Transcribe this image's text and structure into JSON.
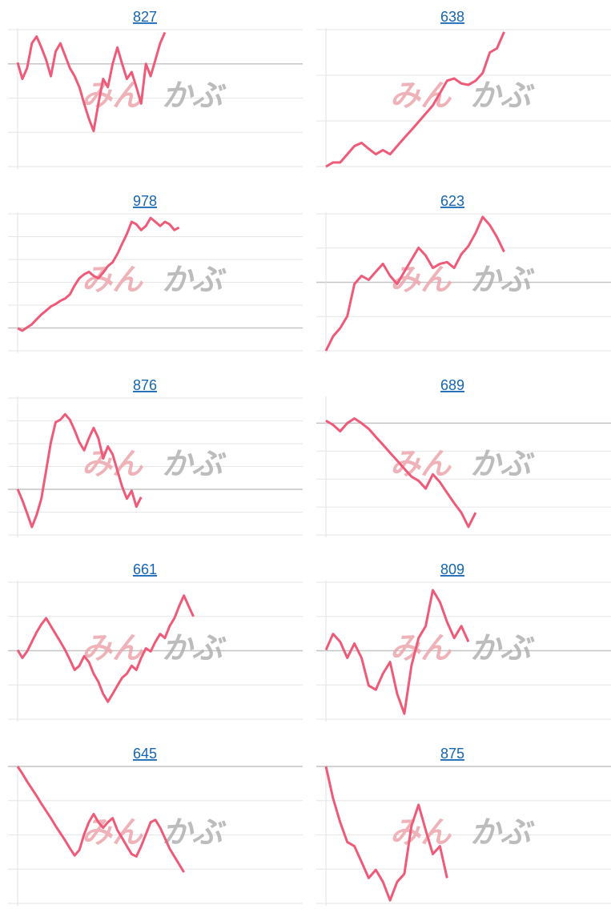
{
  "watermark": [
    "みん",
    "かぶ"
  ],
  "chart_data": [
    {
      "type": "line",
      "title": "827",
      "color": "#ee5a78",
      "xlim": [
        0,
        60
      ],
      "ylim": [
        0,
        4
      ],
      "yticks": [
        0,
        1,
        2,
        3,
        4
      ],
      "baseline": 3,
      "values": [
        3.04,
        2.56,
        2.88,
        3.6,
        3.8,
        3.48,
        3.12,
        2.64,
        3.36,
        3.6,
        3.24,
        2.88,
        2.64,
        2.32,
        1.84,
        1.4,
        1.04,
        1.84,
        2.56,
        2.32,
        3,
        3.48,
        3,
        2.56,
        2.76,
        2.32,
        1.84,
        3,
        2.64,
        3.12,
        3.6,
        3.92
      ]
    },
    {
      "type": "line",
      "title": "638",
      "color": "#ee5a78",
      "xlim": [
        0,
        40
      ],
      "ylim": [
        0,
        3
      ],
      "yticks": [
        0,
        1,
        2,
        3
      ],
      "values": [
        0,
        0.09,
        0.09,
        0.27,
        0.45,
        0.52,
        0.39,
        0.27,
        0.36,
        0.27,
        0.45,
        0.63,
        0.8,
        0.98,
        1.16,
        1.34,
        1.61,
        1.88,
        1.93,
        1.82,
        1.79,
        1.88,
        2.05,
        2.5,
        2.59,
        2.95
      ]
    },
    {
      "type": "line",
      "title": "978",
      "color": "#ee5a78",
      "xlim": [
        0,
        60
      ],
      "ylim": [
        0,
        6
      ],
      "yticks": [
        0,
        1,
        2,
        3,
        4,
        5,
        6
      ],
      "baseline": 1,
      "values": [
        0.99,
        0.88,
        1.02,
        1.16,
        1.38,
        1.59,
        1.76,
        1.94,
        2.05,
        2.19,
        2.29,
        2.47,
        2.86,
        3.18,
        3.35,
        3.46,
        3.28,
        3.18,
        3.42,
        3.71,
        3.88,
        4.24,
        4.69,
        5.12,
        5.65,
        5.54,
        5.29,
        5.47,
        5.82,
        5.65,
        5.47,
        5.65,
        5.54,
        5.29,
        5.4
      ]
    },
    {
      "type": "line",
      "title": "623",
      "color": "#ee5a78",
      "xlim": [
        0,
        40
      ],
      "ylim": [
        0,
        4
      ],
      "yticks": [
        0,
        1,
        2,
        3,
        4
      ],
      "baseline": 2,
      "values": [
        0,
        0.42,
        0.66,
        1.01,
        1.95,
        2.19,
        2.07,
        2.31,
        2.54,
        2.19,
        1.95,
        2.31,
        2.66,
        3.01,
        2.78,
        2.42,
        2.54,
        2.59,
        2.42,
        2.82,
        3.06,
        3.44,
        3.91,
        3.67,
        3.32,
        2.89
      ]
    },
    {
      "type": "line",
      "title": "876",
      "color": "#ee5a78",
      "xlim": [
        0,
        60
      ],
      "ylim": [
        0,
        6
      ],
      "yticks": [
        0,
        1,
        2,
        3,
        4,
        5,
        6
      ],
      "baseline": 2,
      "values": [
        2.01,
        1.52,
        0.95,
        0.35,
        0.88,
        1.59,
        2.82,
        4.06,
        4.94,
        5.05,
        5.29,
        5.05,
        4.59,
        4.06,
        3.71,
        4.24,
        4.69,
        4.24,
        3.35,
        3.88,
        3.53,
        2.82,
        2.12,
        1.59,
        1.94,
        1.24,
        1.66
      ]
    },
    {
      "type": "line",
      "title": "689",
      "color": "#ee5a78",
      "xlim": [
        0,
        40
      ],
      "ylim": [
        0,
        4.9
      ],
      "yticks": [
        0,
        1,
        2,
        3,
        4
      ],
      "baseline": 4,
      "values": [
        4.09,
        3.94,
        3.71,
        4,
        4.17,
        4,
        3.8,
        3.51,
        3.23,
        2.94,
        2.66,
        2.37,
        2.09,
        1.94,
        1.66,
        2.17,
        1.89,
        1.51,
        1.14,
        0.8,
        0.29,
        0.8
      ]
    },
    {
      "type": "line",
      "title": "661",
      "color": "#ee5a78",
      "xlim": [
        0,
        60
      ],
      "ylim": [
        0,
        4
      ],
      "yticks": [
        0,
        1,
        2,
        3,
        4
      ],
      "baseline": 2,
      "values": [
        2.02,
        1.79,
        1.98,
        2.26,
        2.54,
        2.77,
        2.95,
        2.72,
        2.49,
        2.26,
        2.02,
        1.74,
        1.44,
        1.56,
        1.84,
        1.67,
        1.33,
        1.09,
        0.74,
        0.51,
        0.74,
        0.98,
        1.21,
        1.33,
        1.56,
        1.44,
        1.79,
        2.07,
        1.98,
        2.26,
        2.49,
        2.37,
        2.72,
        2.95,
        3.3,
        3.61,
        3.3,
        3.0
      ]
    },
    {
      "type": "line",
      "title": "809",
      "color": "#ee5a78",
      "xlim": [
        0,
        40
      ],
      "ylim": [
        0,
        4
      ],
      "yticks": [
        0,
        1,
        2,
        3,
        4
      ],
      "baseline": 2,
      "values": [
        2.02,
        2.49,
        2.26,
        1.79,
        2.21,
        1.79,
        0.98,
        0.86,
        1.33,
        1.67,
        0.74,
        0.16,
        1.56,
        2.37,
        2.72,
        3.77,
        3.42,
        2.84,
        2.37,
        2.72,
        2.26
      ]
    },
    {
      "type": "line",
      "title": "645",
      "color": "#ee5a78",
      "xlim": [
        0,
        60
      ],
      "ylim": [
        0,
        4
      ],
      "yticks": [
        0,
        1,
        2,
        3,
        4
      ],
      "baseline": 4,
      "values": [
        4,
        3.79,
        3.56,
        3.35,
        3.14,
        2.91,
        2.7,
        2.49,
        2.26,
        2.05,
        1.84,
        1.61,
        1.4,
        1.56,
        2.02,
        2.37,
        2.61,
        2.37,
        2.21,
        2.37,
        2.49,
        2.14,
        1.91,
        1.67,
        1.44,
        1.37,
        1.67,
        2.02,
        2.37,
        2.44,
        2.21,
        1.91,
        1.6,
        1.37,
        1.14,
        0.91
      ]
    },
    {
      "type": "line",
      "title": "875",
      "color": "#ee5a78",
      "xlim": [
        0,
        40
      ],
      "ylim": [
        0,
        4
      ],
      "yticks": [
        0,
        1,
        2,
        3,
        4
      ],
      "baseline": 4,
      "values": [
        4,
        3.07,
        2.37,
        1.79,
        1.67,
        1.21,
        0.74,
        0.98,
        0.63,
        0.09,
        0.63,
        0.86,
        2.26,
        2.88,
        2.14,
        1.44,
        1.67,
        0.74
      ]
    }
  ]
}
